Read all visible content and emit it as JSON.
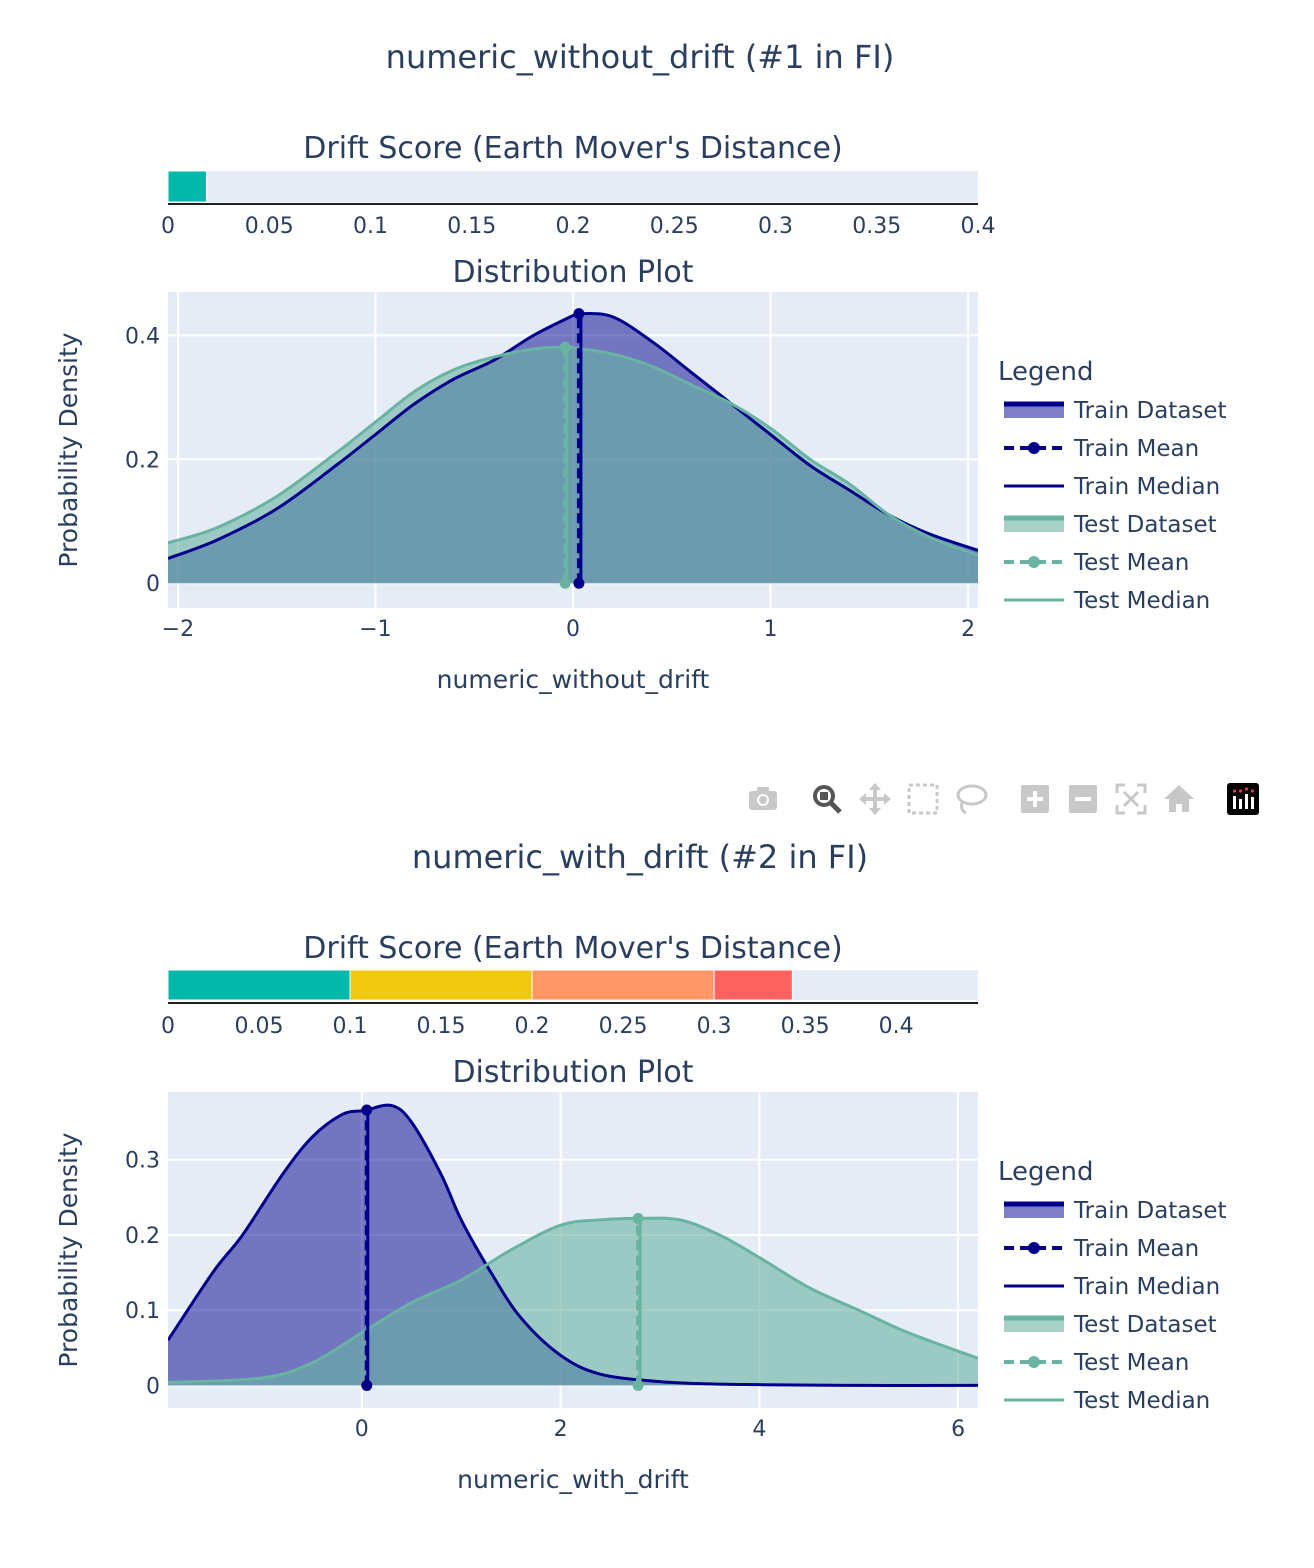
{
  "colors": {
    "train": "#00008b",
    "train_fill": "rgba(0,0,139,0.5)",
    "test": "#69b3a2",
    "test_fill": "rgba(105,179,162,0.6)",
    "plot_bg": "#e5ecf6",
    "text": "#2a3f5f",
    "bar_green": "#01b8aa",
    "bar_yellow": "#f2c80f",
    "bar_orange": "#fe9666",
    "bar_red": "#fd625e"
  },
  "legend": {
    "title": "Legend",
    "items": [
      "Train Dataset",
      "Train Mean",
      "Train Median",
      "Test Dataset",
      "Test Mean",
      "Test Median"
    ]
  },
  "modebar": {
    "icons": [
      "camera-icon",
      "zoom-icon",
      "pan-icon",
      "box-select-icon",
      "lasso-icon",
      "zoom-in-icon",
      "zoom-out-icon",
      "autoscale-icon",
      "reset-axes-icon",
      "plotly-logo-icon"
    ]
  },
  "chart_data": [
    {
      "type": "area",
      "title": "numeric_without_drift (#1 in FI)",
      "drift_score": {
        "title": "Drift Score (Earth Mover's Distance)",
        "value": 0.019,
        "xlim": [
          0,
          0.4
        ],
        "ticks": [
          0,
          0.05,
          0.1,
          0.15,
          0.2,
          0.25,
          0.3,
          0.35,
          0.4
        ],
        "tick_labels": [
          "0",
          "0.05",
          "0.1",
          "0.15",
          "0.2",
          "0.25",
          "0.3",
          "0.35",
          "0.4"
        ],
        "segments": [
          {
            "from": 0,
            "to": 0.019,
            "color": "#01b8aa"
          }
        ]
      },
      "distribution": {
        "title": "Distribution Plot",
        "xlabel": "numeric_without_drift",
        "ylabel": "Probability Density",
        "xlim": [
          -2.05,
          2.05
        ],
        "ylim": [
          -0.04,
          0.47
        ],
        "xticks": [
          -2,
          -1,
          0,
          1,
          2
        ],
        "xtick_labels": [
          "−2",
          "−1",
          "0",
          "1",
          "2"
        ],
        "yticks": [
          0,
          0.2,
          0.4
        ],
        "ytick_labels": [
          "0",
          "0.2",
          "0.4"
        ],
        "series": [
          {
            "name": "Train Dataset",
            "x": [
              -2.05,
              -1.8,
              -1.5,
              -1.2,
              -1.0,
              -0.8,
              -0.6,
              -0.4,
              -0.2,
              0.0,
              0.03,
              0.2,
              0.4,
              0.6,
              0.8,
              1.0,
              1.2,
              1.4,
              1.6,
              1.8,
              2.05
            ],
            "y": [
              0.04,
              0.07,
              0.12,
              0.19,
              0.24,
              0.29,
              0.33,
              0.36,
              0.4,
              0.432,
              0.435,
              0.43,
              0.39,
              0.34,
              0.29,
              0.24,
              0.19,
              0.15,
              0.11,
              0.08,
              0.053
            ]
          },
          {
            "name": "Test Dataset",
            "x": [
              -2.05,
              -1.8,
              -1.5,
              -1.2,
              -1.0,
              -0.8,
              -0.6,
              -0.4,
              -0.2,
              -0.04,
              0.0,
              0.2,
              0.4,
              0.6,
              0.8,
              1.0,
              1.2,
              1.4,
              1.6,
              1.8,
              2.05
            ],
            "y": [
              0.065,
              0.09,
              0.14,
              0.21,
              0.26,
              0.31,
              0.345,
              0.365,
              0.378,
              0.381,
              0.38,
              0.37,
              0.35,
              0.32,
              0.29,
              0.25,
              0.2,
              0.16,
              0.11,
              0.075,
              0.045
            ]
          }
        ],
        "train_mean": {
          "x": 0.03,
          "y": 0.435
        },
        "train_median": {
          "x": 0.04,
          "y": 0.435
        },
        "test_mean": {
          "x": -0.04,
          "y": 0.381
        },
        "test_median": {
          "x": -0.03,
          "y": 0.381
        }
      }
    },
    {
      "type": "area",
      "title": "numeric_with_drift (#2 in FI)",
      "drift_score": {
        "title": "Drift Score (Earth Mover's Distance)",
        "value": 0.343,
        "xlim": [
          0,
          0.445
        ],
        "ticks": [
          0,
          0.05,
          0.1,
          0.15,
          0.2,
          0.25,
          0.3,
          0.35,
          0.4
        ],
        "tick_labels": [
          "0",
          "0.05",
          "0.1",
          "0.15",
          "0.2",
          "0.25",
          "0.3",
          "0.35",
          "0.4"
        ],
        "segments": [
          {
            "from": 0,
            "to": 0.1,
            "color": "#01b8aa"
          },
          {
            "from": 0.1,
            "to": 0.2,
            "color": "#f2c80f"
          },
          {
            "from": 0.2,
            "to": 0.3,
            "color": "#fe9666"
          },
          {
            "from": 0.3,
            "to": 0.343,
            "color": "#fd625e"
          }
        ]
      },
      "distribution": {
        "title": "Distribution Plot",
        "xlabel": "numeric_with_drift",
        "ylabel": "Probability Density",
        "xlim": [
          -1.95,
          6.2
        ],
        "ylim": [
          -0.03,
          0.39
        ],
        "xticks": [
          0,
          2,
          4,
          6
        ],
        "xtick_labels": [
          "0",
          "2",
          "4",
          "6"
        ],
        "yticks": [
          0,
          0.1,
          0.2,
          0.3
        ],
        "ytick_labels": [
          "0",
          "0.1",
          "0.2",
          "0.3"
        ],
        "series": [
          {
            "name": "Train Dataset",
            "x": [
              -1.95,
              -1.5,
              -1.2,
              -0.8,
              -0.5,
              -0.2,
              0.0,
              0.05,
              0.3,
              0.5,
              0.8,
              1.0,
              1.3,
              1.6,
              2.0,
              2.4,
              3.0,
              3.5,
              4.0,
              5.0,
              6.2
            ],
            "y": [
              0.06,
              0.15,
              0.2,
              0.28,
              0.33,
              0.36,
              0.365,
              0.366,
              0.372,
              0.35,
              0.28,
              0.22,
              0.15,
              0.09,
              0.04,
              0.015,
              0.005,
              0.002,
              0.001,
              0.0,
              0.0
            ],
            "train_only": true
          },
          {
            "name": "Test Dataset",
            "x": [
              -1.95,
              -1.0,
              -0.5,
              0.0,
              0.5,
              1.0,
              1.5,
              2.0,
              2.4,
              2.8,
              3.2,
              3.6,
              4.0,
              4.5,
              5.0,
              5.5,
              6.2
            ],
            "y": [
              0.004,
              0.01,
              0.03,
              0.07,
              0.11,
              0.14,
              0.18,
              0.213,
              0.22,
              0.222,
              0.22,
              0.2,
              0.17,
              0.13,
              0.1,
              0.07,
              0.036
            ]
          }
        ],
        "train_mean": {
          "x": 0.05,
          "y": 0.366
        },
        "train_median": {
          "x": 0.06,
          "y": 0.366
        },
        "test_mean": {
          "x": 2.78,
          "y": 0.222
        },
        "test_median": {
          "x": 2.8,
          "y": 0.222
        }
      }
    }
  ]
}
